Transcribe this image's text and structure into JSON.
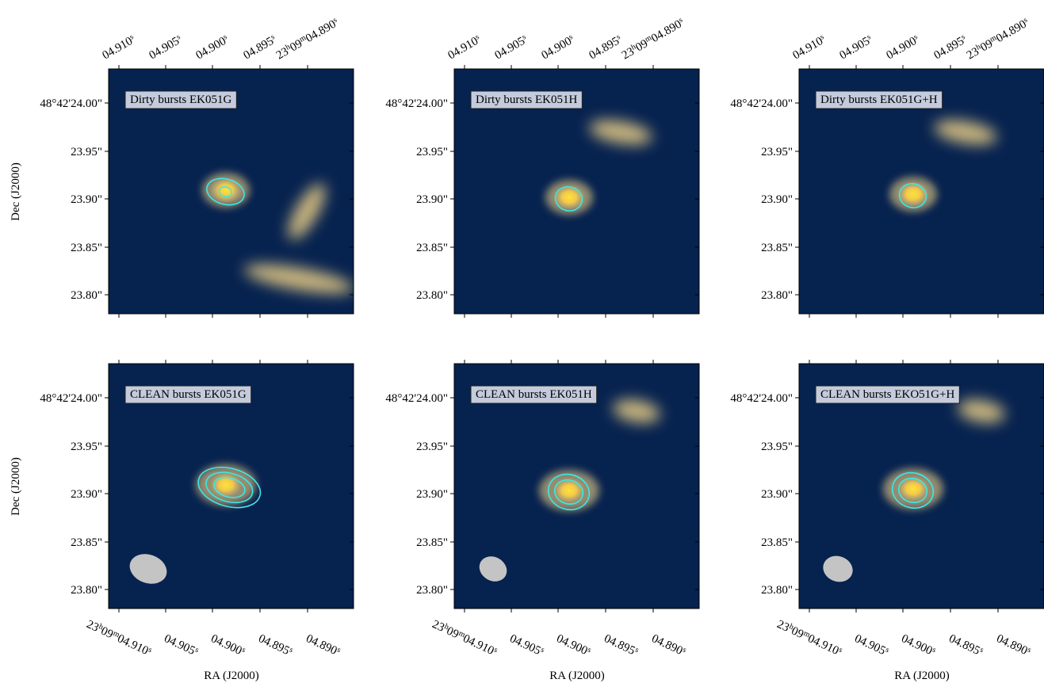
{
  "dec_label": "Dec (J2000)",
  "ra_label": "RA (J2000)",
  "dec_ticks": [
    "48°42'24.00\"",
    "23.95\"",
    "23.90\"",
    "23.85\"",
    "23.80\""
  ],
  "ra_top_ticks": [
    [
      "04.910",
      "s"
    ],
    [
      "04.905",
      "s"
    ],
    [
      "04.900",
      "s"
    ],
    [
      "04.895",
      "s"
    ],
    [
      "23",
      "h",
      "09",
      "m",
      "04.890",
      "s"
    ]
  ],
  "ra_bottom_ticks": [
    [
      "23",
      "h",
      "09",
      "m",
      "04.910",
      "s"
    ],
    [
      "04.905",
      "s"
    ],
    [
      "04.900",
      "s"
    ],
    [
      "04.895",
      "s"
    ],
    [
      "04.890",
      "s"
    ]
  ],
  "panels": [
    "Dirty bursts EK051G",
    "Dirty bursts EK051H",
    "Dirty bursts EK051G+H",
    "CLEAN bursts EK051G",
    "CLEAN bursts EK051H",
    "CLEAN bursts EKO51G+H"
  ]
}
